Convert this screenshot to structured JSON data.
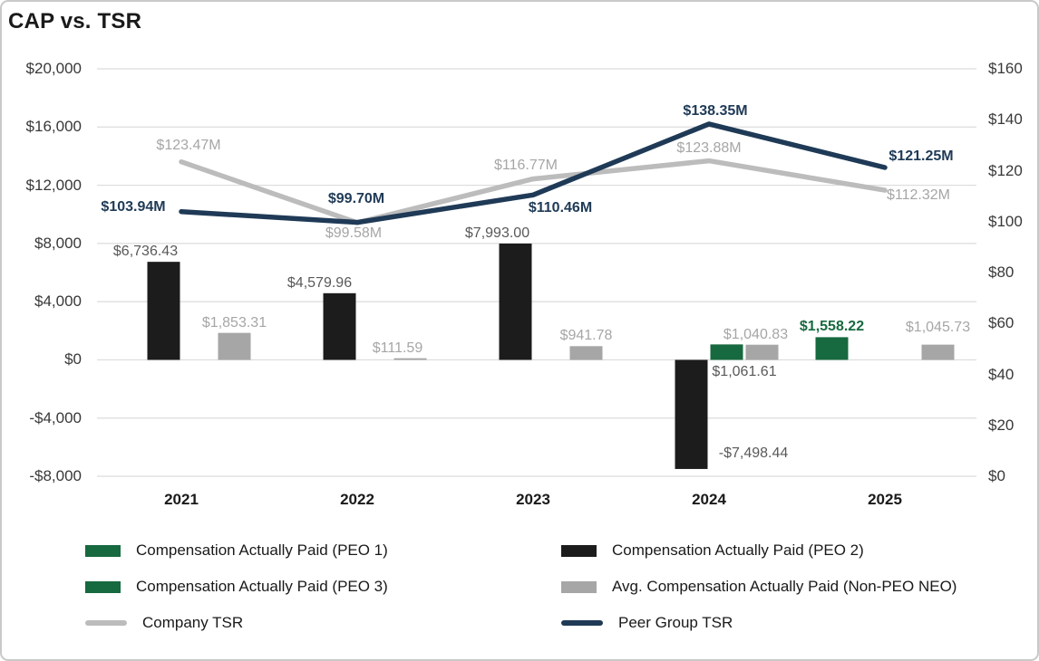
{
  "title": "CAP vs. TSR",
  "colors": {
    "green_bar": "#17693f",
    "black_bar": "#1c1c1c",
    "gray_bar": "#a6a6a6",
    "company_tsr_line": "#bcbcbc",
    "peer_tsr_line": "#1f3a56",
    "dark_label": "#595959",
    "light_label": "#a6a6a6",
    "axis_text": "#383838",
    "gridline": "#dcdcdc",
    "frame_border": "#c9c9c9"
  },
  "chart_data": {
    "type": "bar",
    "subtype": "bar-line-combo-dual-axis",
    "title": "CAP vs. TSR",
    "categories": [
      "2021",
      "2022",
      "2023",
      "2024",
      "2025"
    ],
    "grid": true,
    "left_axis": {
      "ticks": [
        "$20,000",
        "$16,000",
        "$12,000",
        "$8,000",
        "$4,000",
        "$0",
        "-$4,000",
        "-$8,000"
      ],
      "values": [
        20000,
        16000,
        12000,
        8000,
        4000,
        0,
        -4000,
        -8000
      ],
      "max": 20000,
      "min": -8000
    },
    "right_axis": {
      "ticks": [
        "$160",
        "$140",
        "$120",
        "$100",
        "$80",
        "$60",
        "$40",
        "$20",
        "$0"
      ],
      "values": [
        160,
        140,
        120,
        100,
        80,
        60,
        40,
        20,
        0
      ],
      "max": 160,
      "min": 0
    },
    "bar_series": [
      {
        "key": "peo1",
        "name": "Compensation Actually Paid (PEO 1)",
        "color": "#17693f",
        "label_color": "#17693f",
        "label_bold": true,
        "values": [
          null,
          null,
          null,
          null,
          1558.22
        ],
        "labels": [
          null,
          null,
          null,
          null,
          "$1,558.22"
        ]
      },
      {
        "key": "peo2",
        "name": "Compensation Actually Paid (PEO 2)",
        "color": "#1c1c1c",
        "label_color": "#595959",
        "label_bold": false,
        "values": [
          6736.43,
          4579.96,
          7993.0,
          -7498.44,
          null
        ],
        "labels": [
          "$6,736.43",
          "$4,579.96",
          "$7,993.00",
          "-$7,498.44",
          null
        ]
      },
      {
        "key": "peo3",
        "name": "Compensation Actually Paid (PEO 3)",
        "color": "#17693f",
        "label_color": "#595959",
        "label_bold": false,
        "values": [
          null,
          null,
          null,
          1061.61,
          null
        ],
        "labels": [
          null,
          null,
          null,
          "$1,061.61",
          null
        ]
      },
      {
        "key": "neo",
        "name": "Avg. Compensation Actually Paid (Non-PEO NEO)",
        "color": "#a6a6a6",
        "label_color": "#a6a6a6",
        "label_bold": false,
        "values": [
          1853.31,
          111.59,
          941.78,
          1040.83,
          1045.73
        ],
        "labels": [
          "$1,853.31",
          "$111.59",
          "$941.78",
          "$1,040.83",
          "$1,045.73"
        ]
      }
    ],
    "line_series": [
      {
        "key": "company-tsr",
        "name": "Company TSR",
        "color": "#bcbcbc",
        "label_color": "#a6a6a6",
        "label_bold": false,
        "values": [
          123.47,
          99.58,
          116.77,
          123.88,
          112.32
        ],
        "labels": [
          "$123.47M",
          "$99.58M",
          "$116.77M",
          "$123.88M",
          "$112.32M"
        ]
      },
      {
        "key": "peer-tsr",
        "name": "Peer Group TSR",
        "color": "#1f3a56",
        "label_color": "#1f3a56",
        "label_bold": true,
        "values": [
          103.94,
          99.7,
          110.46,
          138.35,
          121.25
        ],
        "labels": [
          "$103.94M",
          "$99.70M",
          "$110.46M",
          "$138.35M",
          "$121.25M"
        ]
      }
    ],
    "legend_position": "bottom-two-columns"
  },
  "legend": {
    "columns": [
      [
        {
          "key": "peo1",
          "swatch": "bar",
          "color": "#17693f",
          "label": "Compensation Actually Paid (PEO 1)"
        },
        {
          "key": "peo3",
          "swatch": "bar",
          "color": "#17693f",
          "label": "Compensation Actually Paid (PEO 3)"
        },
        {
          "key": "company-tsr",
          "swatch": "line",
          "color": "#bcbcbc",
          "label": "Company TSR"
        }
      ],
      [
        {
          "key": "peo2",
          "swatch": "bar",
          "color": "#1c1c1c",
          "label": "Compensation Actually Paid (PEO 2)"
        },
        {
          "key": "neo",
          "swatch": "bar",
          "color": "#a6a6a6",
          "label": "Avg. Compensation Actually Paid (Non-PEO NEO)"
        },
        {
          "key": "peer-tsr",
          "swatch": "line",
          "color": "#1f3a56",
          "label": "Peer Group TSR"
        }
      ]
    ]
  }
}
